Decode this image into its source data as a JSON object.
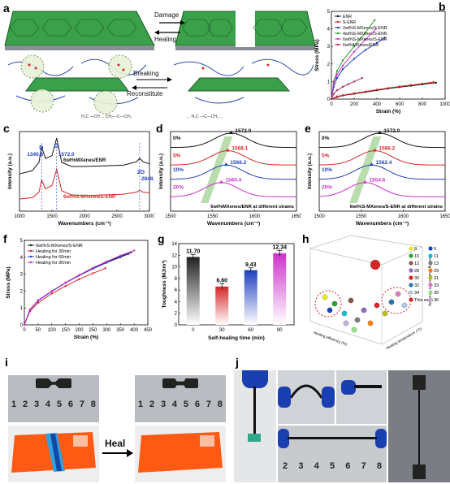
{
  "panel_labels": {
    "a": "a",
    "b": "b",
    "c": "c",
    "d": "d",
    "e": "e",
    "f": "f",
    "g": "g",
    "h": "h",
    "i": "i",
    "j": "j"
  },
  "panel_a": {
    "damage": "Damage",
    "healing": "Healing",
    "breaking": "Breaking",
    "reconstitute": "Reconstitute"
  },
  "chart_data": [
    {
      "id": "b",
      "type": "line",
      "xlabel": "Strain (%)",
      "ylabel": "Stress (MPa)",
      "xlim": [
        0,
        1000
      ],
      "ylim": [
        0,
        5
      ],
      "xticks": [
        0,
        200,
        400,
        600,
        800,
        1000
      ],
      "yticks": [
        0,
        1,
        2,
        3,
        4,
        5
      ],
      "legend_position": "top-left",
      "series": [
        {
          "name": "ENR",
          "color": "#111111",
          "x": [
            0,
            50,
            100,
            200,
            300,
            400,
            500,
            600,
            700,
            800,
            920
          ],
          "y": [
            0,
            0.12,
            0.2,
            0.3,
            0.4,
            0.5,
            0.6,
            0.68,
            0.76,
            0.84,
            0.93
          ]
        },
        {
          "name": "S-ENR",
          "color": "#d62728",
          "x": [
            0,
            50,
            100,
            200,
            300,
            400,
            500,
            600,
            700,
            800,
            900
          ],
          "y": [
            0,
            0.15,
            0.22,
            0.33,
            0.43,
            0.53,
            0.63,
            0.72,
            0.8,
            0.88,
            0.97
          ]
        },
        {
          "name": "2wt%S-MXenes/S-ENR",
          "color": "#1f3fbf",
          "x": [
            0,
            20,
            50,
            100,
            200,
            300,
            400,
            470
          ],
          "y": [
            0,
            0.7,
            1.2,
            1.7,
            2.3,
            2.8,
            3.2,
            3.5
          ]
        },
        {
          "name": "4wt%S-MXenes/S-ENR",
          "color": "#2ca02c",
          "x": [
            0,
            20,
            50,
            100,
            200,
            300,
            380
          ],
          "y": [
            0,
            1.0,
            1.6,
            2.2,
            3.0,
            3.8,
            4.5
          ]
        },
        {
          "name": "6wt%S-MXenes/S-ENR",
          "color": "#cc33cc",
          "x": [
            0,
            20,
            50,
            100,
            200,
            300,
            390
          ],
          "y": [
            0,
            0.9,
            1.4,
            1.9,
            2.7,
            3.4,
            4.0
          ]
        },
        {
          "name": "6wt%MXenes/ENR",
          "color": "#b03060",
          "x": [
            0,
            20,
            50,
            100,
            150,
            200,
            270
          ],
          "y": [
            0,
            0.3,
            0.5,
            0.7,
            0.85,
            1.0,
            1.2
          ]
        }
      ]
    },
    {
      "id": "c",
      "type": "line",
      "xlabel": "Wavenumbers (cm⁻¹)",
      "ylabel": "Intensity (a.u.)",
      "xlim": [
        1000,
        3000
      ],
      "xticks": [
        1000,
        1500,
        2000,
        2500,
        3000
      ],
      "peaks": [
        "D",
        "G",
        "2G"
      ],
      "peak_values": [
        "1340.6",
        "1572.0",
        "2848.6"
      ],
      "series": [
        {
          "name": "6wt%MXenes/ENR",
          "color": "#111111",
          "x": [
            1000,
            1200,
            1300,
            1340,
            1400,
            1500,
            1572,
            1650,
            1800,
            2000,
            2300,
            2600,
            2800,
            2850,
            2900,
            3000
          ],
          "y": [
            0.55,
            0.6,
            0.72,
            0.95,
            0.78,
            0.82,
            1.08,
            0.72,
            0.66,
            0.66,
            0.67,
            0.68,
            0.73,
            0.78,
            0.73,
            0.7
          ]
        },
        {
          "name": "6wt%S-MXenes/S-ENR",
          "color": "#d62728",
          "x": [
            1000,
            1200,
            1300,
            1340,
            1400,
            1500,
            1572,
            1650,
            1800,
            2000,
            2300,
            2600,
            2800,
            2850,
            2900,
            3000
          ],
          "y": [
            0.18,
            0.2,
            0.28,
            0.46,
            0.33,
            0.38,
            0.62,
            0.3,
            0.24,
            0.23,
            0.24,
            0.25,
            0.28,
            0.31,
            0.28,
            0.27
          ]
        }
      ]
    },
    {
      "id": "d",
      "type": "line",
      "xlabel": "Wavenumbers (cm⁻¹)",
      "ylabel": "Intensity (a.u.)",
      "xlim": [
        1500,
        1650
      ],
      "xticks": [
        1500,
        1550,
        1600,
        1650
      ],
      "caption": "6wt%MXenes/ENR at different strains",
      "series": [
        {
          "name": "0%",
          "color": "#111111",
          "peak_x": 1572.0,
          "peak_label": "1572.0",
          "base": 0.8
        },
        {
          "name": "5%",
          "color": "#d62728",
          "peak_x": 1568.1,
          "peak_label": "1568.1",
          "base": 0.58
        },
        {
          "name": "10%",
          "color": "#1f3fbf",
          "peak_x": 1566.2,
          "peak_label": "1566.2",
          "base": 0.4
        },
        {
          "name": "20%",
          "color": "#cc33cc",
          "peak_x": 1560.4,
          "peak_label": "1560.4",
          "base": 0.18
        }
      ]
    },
    {
      "id": "e",
      "type": "line",
      "xlabel": "Wavenumbers (cm⁻¹)",
      "ylabel": "Intensity (a.u.)",
      "xlim": [
        1500,
        1650
      ],
      "xticks": [
        1500,
        1550,
        1600,
        1650
      ],
      "caption": "6wt%S-MXenes/S-ENR at different strains",
      "series": [
        {
          "name": "0%",
          "color": "#111111",
          "peak_x": 1572.0,
          "peak_label": "1572.0",
          "base": 0.8
        },
        {
          "name": "5%",
          "color": "#d62728",
          "peak_x": 1566.2,
          "peak_label": "1566.2",
          "base": 0.58
        },
        {
          "name": "10%",
          "color": "#1f3fbf",
          "peak_x": 1562.4,
          "peak_label": "1562.4",
          "base": 0.4
        },
        {
          "name": "20%",
          "color": "#cc33cc",
          "peak_x": 1554.6,
          "peak_label": "1554.6",
          "base": 0.18
        }
      ]
    },
    {
      "id": "f",
      "type": "line",
      "xlabel": "Strain (%)",
      "ylabel": "Stress (MPa)",
      "xlim": [
        0,
        450
      ],
      "ylim": [
        0,
        5
      ],
      "xticks": [
        0,
        50,
        100,
        150,
        200,
        250,
        300,
        350,
        400,
        450
      ],
      "yticks": [
        0,
        1,
        2,
        3,
        4,
        5
      ],
      "legend_position": "top-left",
      "series": [
        {
          "name": "6wt%S-MXenes/S-ENR",
          "color": "#111111",
          "x": [
            0,
            20,
            50,
            100,
            150,
            200,
            250,
            300,
            350,
            390
          ],
          "y": [
            0,
            0.9,
            1.45,
            2.0,
            2.5,
            2.95,
            3.35,
            3.7,
            4.05,
            4.3
          ]
        },
        {
          "name": "Healing for 30min",
          "color": "#d62728",
          "x": [
            0,
            20,
            50,
            100,
            150,
            200,
            250,
            295
          ],
          "y": [
            0,
            0.8,
            1.3,
            1.85,
            2.3,
            2.7,
            3.05,
            3.35
          ]
        },
        {
          "name": "Healing for 60min",
          "color": "#1f3fbf",
          "x": [
            0,
            20,
            50,
            100,
            150,
            200,
            250,
            300,
            350,
            380
          ],
          "y": [
            0,
            0.88,
            1.42,
            1.98,
            2.48,
            2.92,
            3.32,
            3.68,
            4.0,
            4.2
          ]
        },
        {
          "name": "Healing for 90min",
          "color": "#cc33cc",
          "x": [
            0,
            20,
            50,
            100,
            150,
            200,
            250,
            300,
            350,
            400
          ],
          "y": [
            0,
            0.9,
            1.45,
            2.0,
            2.5,
            2.95,
            3.38,
            3.75,
            4.1,
            4.4
          ]
        }
      ]
    },
    {
      "id": "g",
      "type": "bar",
      "xlabel": "Self-healing time (min)",
      "ylabel": "Toughness (MJ/m³)",
      "categories": [
        "0",
        "30",
        "60",
        "90"
      ],
      "values": [
        11.7,
        6.6,
        9.43,
        12.34
      ],
      "labels": [
        "11.70",
        "6.60",
        "9.43",
        "12.34"
      ],
      "errors": [
        0.4,
        0.5,
        0.4,
        0.5
      ],
      "colors": [
        "#222222",
        "#d62728",
        "#1f3fbf",
        "#cc33cc"
      ],
      "ylim": [
        0,
        14
      ],
      "yticks": [
        0,
        2,
        4,
        6,
        8,
        10,
        12,
        14
      ]
    },
    {
      "id": "h",
      "type": "scatter",
      "axis_labels": [
        "Healing efficiency (%)",
        "Healing temperature (°C)",
        "Healing environment sensitivity"
      ],
      "legend": [
        "8",
        "9",
        "10",
        "11",
        "12",
        "13",
        "28",
        "29",
        "30",
        "31",
        "32",
        "33",
        "34",
        "35",
        "This work",
        "36"
      ],
      "legend_colors": [
        "#e8e81a",
        "#1f3fbf",
        "#2ca02c",
        "#17becf",
        "#8c564b",
        "#7f7f7f",
        "#9467bd",
        "#ff7f0e",
        "#d62728",
        "#bcbd22",
        "#1f77b4",
        "#e377c2",
        "#aec7e8",
        "#98df8a",
        "#d62728",
        "#c5b0d5"
      ]
    }
  ],
  "panel_i": {
    "arrow_label": "Heal",
    "ruler_numbers": [
      "1",
      "2",
      "3",
      "4",
      "5",
      "6",
      "7",
      "8"
    ]
  },
  "panel_j": {
    "ruler_numbers": [
      "2",
      "3",
      "4",
      "5",
      "6",
      "7",
      "8"
    ]
  }
}
